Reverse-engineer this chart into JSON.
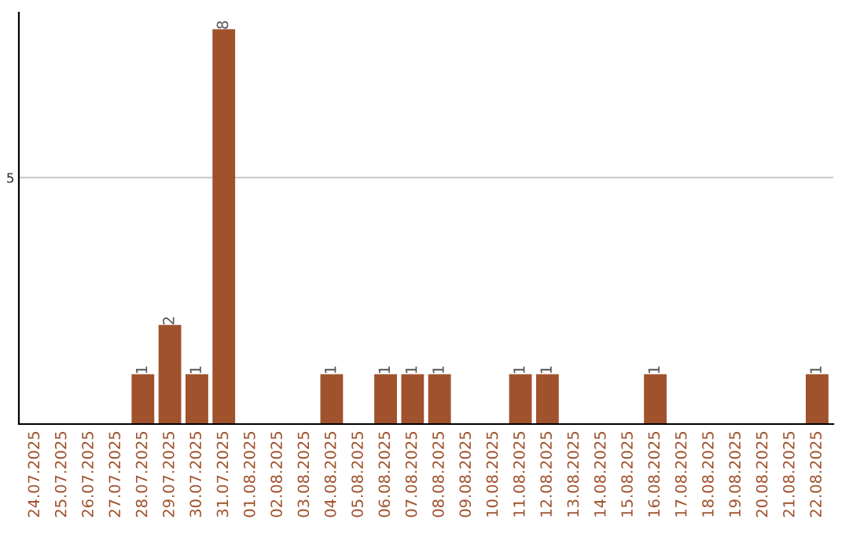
{
  "chart_data": {
    "type": "bar",
    "categories": [
      "24.07.2025",
      "25.07.2025",
      "26.07.2025",
      "27.07.2025",
      "28.07.2025",
      "29.07.2025",
      "30.07.2025",
      "31.07.2025",
      "01.08.2025",
      "02.08.2025",
      "03.08.2025",
      "04.08.2025",
      "05.08.2025",
      "06.08.2025",
      "07.08.2025",
      "08.08.2025",
      "09.08.2025",
      "10.08.2025",
      "11.08.2025",
      "12.08.2025",
      "13.08.2025",
      "14.08.2025",
      "15.08.2025",
      "16.08.2025",
      "17.08.2025",
      "18.08.2025",
      "19.08.2025",
      "20.08.2025",
      "21.08.2025",
      "22.08.2025"
    ],
    "values": [
      0,
      0,
      0,
      0,
      1,
      2,
      1,
      8,
      0,
      0,
      0,
      1,
      0,
      1,
      1,
      1,
      0,
      0,
      1,
      1,
      0,
      0,
      0,
      1,
      0,
      0,
      0,
      0,
      0,
      1
    ],
    "value_labels": [
      null,
      null,
      null,
      null,
      "1",
      "2",
      "1",
      "8",
      null,
      null,
      null,
      "1",
      null,
      "1",
      "1",
      "1",
      null,
      null,
      "1",
      "1",
      null,
      null,
      null,
      "1",
      null,
      null,
      null,
      null,
      null,
      "1"
    ],
    "color": "#a0522d",
    "ylim": [
      0,
      8.35
    ],
    "yticks": [
      5
    ],
    "grid": "y"
  }
}
